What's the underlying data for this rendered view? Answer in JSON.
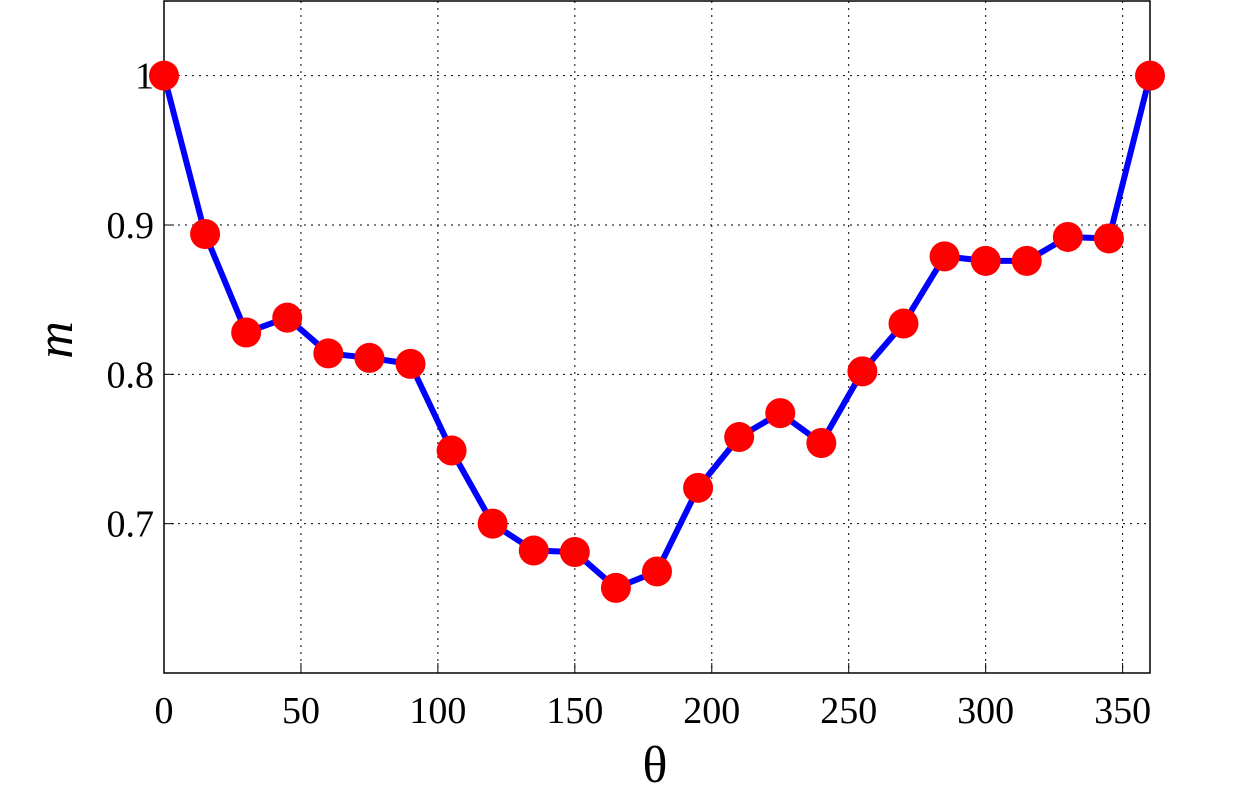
{
  "chart_data": {
    "type": "line",
    "xlabel": "θ",
    "ylabel": "m",
    "x": [
      0,
      15,
      30,
      45,
      60,
      75,
      90,
      105,
      120,
      135,
      150,
      165,
      180,
      195,
      210,
      225,
      240,
      255,
      270,
      285,
      300,
      315,
      330,
      345,
      360
    ],
    "series": [
      {
        "color": "#0000ff",
        "marker_color": "#ff0000",
        "values": [
          1.0,
          0.894,
          0.828,
          0.838,
          0.814,
          0.811,
          0.807,
          0.749,
          0.7,
          0.682,
          0.681,
          0.657,
          0.668,
          0.724,
          0.758,
          0.774,
          0.754,
          0.802,
          0.834,
          0.879,
          0.876,
          0.876,
          0.892,
          0.891,
          1.0
        ]
      }
    ],
    "xlim": [
      0,
      360
    ],
    "xticks": [
      0,
      50,
      100,
      150,
      200,
      250,
      300,
      350
    ],
    "ylim": [
      0.6,
      1.05
    ],
    "yticks": [
      0.7,
      0.8,
      0.9,
      1
    ],
    "grid": true
  }
}
